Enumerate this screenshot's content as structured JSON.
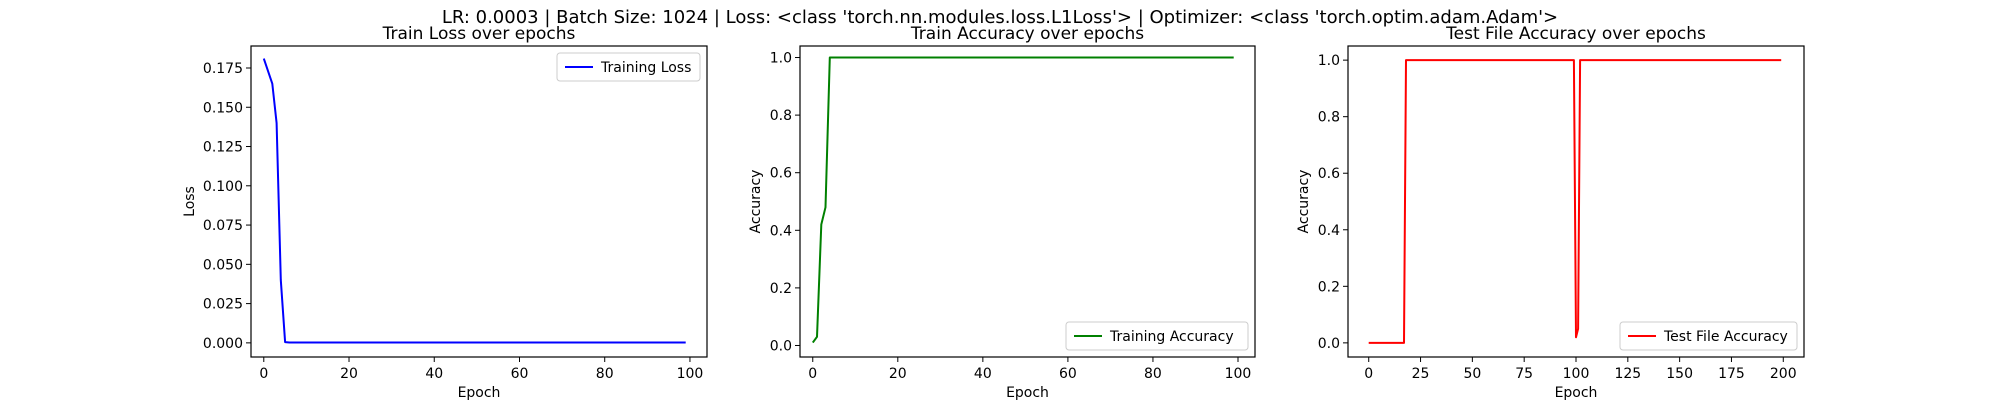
{
  "figure": {
    "suptitle": "LR: 0.0003 | Batch Size: 1024 | Loss: <class 'torch.nn.modules.loss.L1Loss'> | Optimizer: <class 'torch.optim.adam.Adam'>"
  },
  "chart_data": [
    {
      "type": "line",
      "title": "Train Loss over epochs",
      "xlabel": "Epoch",
      "ylabel": "Loss",
      "xlim": [
        -3,
        104
      ],
      "ylim": [
        -0.009,
        0.189
      ],
      "xticks": [
        0,
        20,
        40,
        60,
        80,
        100
      ],
      "xtick_labels": [
        "0",
        "20",
        "40",
        "60",
        "80",
        "100"
      ],
      "yticks": [
        0.0,
        0.025,
        0.05,
        0.075,
        0.1,
        0.125,
        0.15,
        0.175
      ],
      "ytick_labels": [
        "0.000",
        "0.025",
        "0.050",
        "0.075",
        "0.100",
        "0.125",
        "0.150",
        "0.175"
      ],
      "legend_loc": "upper right",
      "grid": false,
      "series": [
        {
          "name": "Training Loss",
          "color": "#0000ff",
          "x": [
            0,
            2,
            3,
            4,
            5,
            6,
            10,
            20,
            40,
            60,
            80,
            99
          ],
          "y": [
            0.181,
            0.165,
            0.14,
            0.04,
            0.0005,
            0.0002,
            0.0002,
            0.0002,
            0.0002,
            0.0002,
            0.0002,
            0.0002
          ]
        }
      ]
    },
    {
      "type": "line",
      "title": "Train Accuracy over epochs",
      "xlabel": "Epoch",
      "ylabel": "Accuracy",
      "xlim": [
        -3,
        104
      ],
      "ylim": [
        -0.04,
        1.04
      ],
      "xticks": [
        0,
        20,
        40,
        60,
        80,
        100
      ],
      "xtick_labels": [
        "0",
        "20",
        "40",
        "60",
        "80",
        "100"
      ],
      "yticks": [
        0.0,
        0.2,
        0.4,
        0.6,
        0.8,
        1.0
      ],
      "ytick_labels": [
        "0.0",
        "0.2",
        "0.4",
        "0.6",
        "0.8",
        "1.0"
      ],
      "legend_loc": "lower right",
      "grid": false,
      "series": [
        {
          "name": "Training Accuracy",
          "color": "#008000",
          "x": [
            0,
            1,
            2,
            3,
            4,
            5,
            10,
            20,
            40,
            60,
            80,
            99
          ],
          "y": [
            0.01,
            0.03,
            0.42,
            0.48,
            1.0,
            1.0,
            1.0,
            1.0,
            1.0,
            1.0,
            1.0,
            1.0
          ]
        }
      ]
    },
    {
      "type": "line",
      "title": "Test File Accuracy over epochs",
      "xlabel": "Epoch",
      "ylabel": "Accuracy",
      "xlim": [
        -10,
        210
      ],
      "ylim": [
        -0.05,
        1.05
      ],
      "xticks": [
        0,
        25,
        50,
        75,
        100,
        125,
        150,
        175,
        200
      ],
      "xtick_labels": [
        "0",
        "25",
        "50",
        "75",
        "100",
        "125",
        "150",
        "175",
        "200"
      ],
      "yticks": [
        0.0,
        0.2,
        0.4,
        0.6,
        0.8,
        1.0
      ],
      "ytick_labels": [
        "0.0",
        "0.2",
        "0.4",
        "0.6",
        "0.8",
        "1.0"
      ],
      "legend_loc": "lower right",
      "grid": false,
      "series": [
        {
          "name": "Test File Accuracy",
          "color": "#ff0000",
          "x": [
            0,
            17,
            18,
            50,
            99,
            100,
            101,
            102,
            103,
            150,
            199
          ],
          "y": [
            0.0,
            0.0,
            1.0,
            1.0,
            1.0,
            0.02,
            0.05,
            1.0,
            1.0,
            1.0,
            1.0
          ]
        }
      ]
    }
  ]
}
